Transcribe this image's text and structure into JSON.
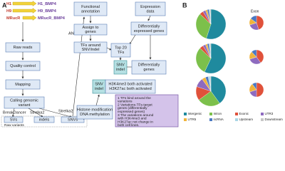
{
  "panel_a": {
    "label": "A",
    "samples": [
      {
        "name": "H1",
        "target": "H1_BMP4"
      },
      {
        "name": "H9",
        "target": "H9_BMP4"
      },
      {
        "name": "MRucR",
        "target": "MRucR_BMP4"
      }
    ],
    "steps": {
      "raw_reads": "Raw reads",
      "quality_control": "Quality control",
      "mapping": "Mapping",
      "calling": [
        "Calling genomic",
        "variant"
      ],
      "functional_annotation": [
        "Functional",
        "annotation"
      ],
      "assign": [
        "Assign to",
        "genes"
      ],
      "tfs_around": [
        "TFs around",
        "SNV/indel"
      ],
      "expression": [
        "Expression",
        "data"
      ],
      "diff_expressed": [
        "Differentially",
        "expressed genes"
      ],
      "top20": [
        "Top 20",
        "TFs"
      ],
      "snv_indel_1": [
        "SNV",
        "indel"
      ],
      "diff_genes": [
        "Differentially",
        "genes"
      ],
      "snv_indel_2": [
        "SNV",
        "indel"
      ],
      "activated": [
        "H3K4me3 both activated",
        "H3K27ac both activated"
      ],
      "histone": [
        "Histone modification",
        "DNA methylation"
      ]
    },
    "tools": {
      "annovar": "ANNOVAR",
      "breakdancer": "BreakDancer",
      "strelka_1": "Strelka2",
      "strelka_2": "Strelka2"
    },
    "variants": {
      "svs": "SVs",
      "indels": "indels",
      "snvs": "SNVs",
      "raw": "Raw variants"
    },
    "findings": [
      "1 TFs bind around the",
      "variations",
      "2 Variations-TFs-target",
      "genes (differentially",
      "expressed genes)",
      "3 The variations around",
      "with H3K4me3 and",
      "H3K27ac not change in",
      "both cell lines."
    ]
  },
  "panel_b": {
    "label": "B",
    "exon_label": "Exon",
    "categories": [
      "Intergenic",
      "Intron",
      "Exonic",
      "UTR3",
      "UTR5",
      "ncRNA",
      "Upstream",
      "Downstream"
    ],
    "colors": [
      "#1f8a9e",
      "#7cc04b",
      "#e0513a",
      "#8e6bbf",
      "#f0b43c",
      "#4a78c2",
      "#a9d6e5",
      "#c7c7c7"
    ],
    "pies": [
      {
        "values": [
          55,
          32,
          4,
          3,
          2,
          2,
          1,
          1
        ],
        "exon_values": [
          45,
          25,
          15,
          15
        ]
      },
      {
        "values": [
          57,
          30,
          4,
          3,
          2,
          2,
          1,
          1
        ],
        "exon_values": [
          40,
          30,
          18,
          12
        ]
      },
      {
        "values": [
          40,
          25,
          15,
          10,
          4,
          3,
          2,
          1
        ],
        "exon_values": [
          50,
          20,
          20,
          10
        ]
      }
    ]
  }
}
